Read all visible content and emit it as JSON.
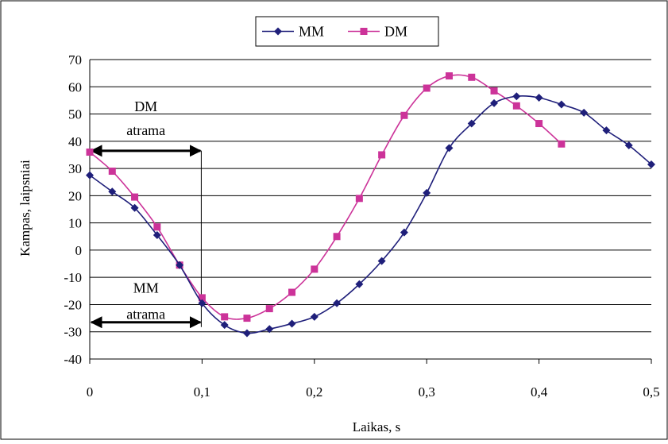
{
  "chart_data": {
    "type": "line",
    "xlabel": "Laikas, s",
    "ylabel": "Kampas, laipsniai",
    "xlim": [
      0,
      0.5
    ],
    "ylim": [
      -40,
      70
    ],
    "x_ticks": [
      "0",
      "0,1",
      "0,2",
      "0,3",
      "0,4",
      "0,5"
    ],
    "y_ticks": [
      "70",
      "60",
      "50",
      "40",
      "30",
      "20",
      "10",
      "0",
      "-10",
      "-20",
      "-30",
      "-40"
    ],
    "grid": "horizontal",
    "legend_position": "top-center",
    "series": [
      {
        "name": "MM",
        "color": "#1f1f7a",
        "marker": "diamond",
        "x": [
          0,
          0.02,
          0.04,
          0.06,
          0.08,
          0.1,
          0.12,
          0.14,
          0.16,
          0.18,
          0.2,
          0.22,
          0.24,
          0.26,
          0.28,
          0.3,
          0.32,
          0.34,
          0.36,
          0.38,
          0.4,
          0.42,
          0.44,
          0.46,
          0.48,
          0.5
        ],
        "values": [
          27.5,
          21.5,
          15.5,
          5.5,
          -5.5,
          -19.5,
          -27.5,
          -30.5,
          -29,
          -27,
          -24.5,
          -19.5,
          -12.5,
          -4,
          6.5,
          21,
          37.5,
          46.5,
          54,
          56.5,
          56,
          53.5,
          50.5,
          44,
          38.5,
          31.5
        ]
      },
      {
        "name": "DM",
        "color": "#cc3399",
        "marker": "square",
        "x": [
          0,
          0.02,
          0.04,
          0.06,
          0.08,
          0.1,
          0.12,
          0.14,
          0.16,
          0.18,
          0.2,
          0.22,
          0.24,
          0.26,
          0.28,
          0.3,
          0.32,
          0.34,
          0.36,
          0.38,
          0.4,
          0.42
        ],
        "values": [
          36,
          29,
          19.5,
          8.5,
          -5.5,
          -17.5,
          -24.5,
          -25,
          -21.5,
          -15.5,
          -7,
          5,
          19,
          35,
          49.5,
          59.5,
          64,
          63.5,
          58.5,
          53,
          46.5,
          39
        ]
      }
    ],
    "annotations": [
      {
        "text_line1": "DM",
        "text_line2": "atrama",
        "y": 36.5,
        "x_from": 0,
        "x_to": 0.1
      },
      {
        "text_line1": "MM",
        "text_line2": "atrama",
        "y": -26.5,
        "x_from": 0,
        "x_to": 0.1
      }
    ]
  }
}
